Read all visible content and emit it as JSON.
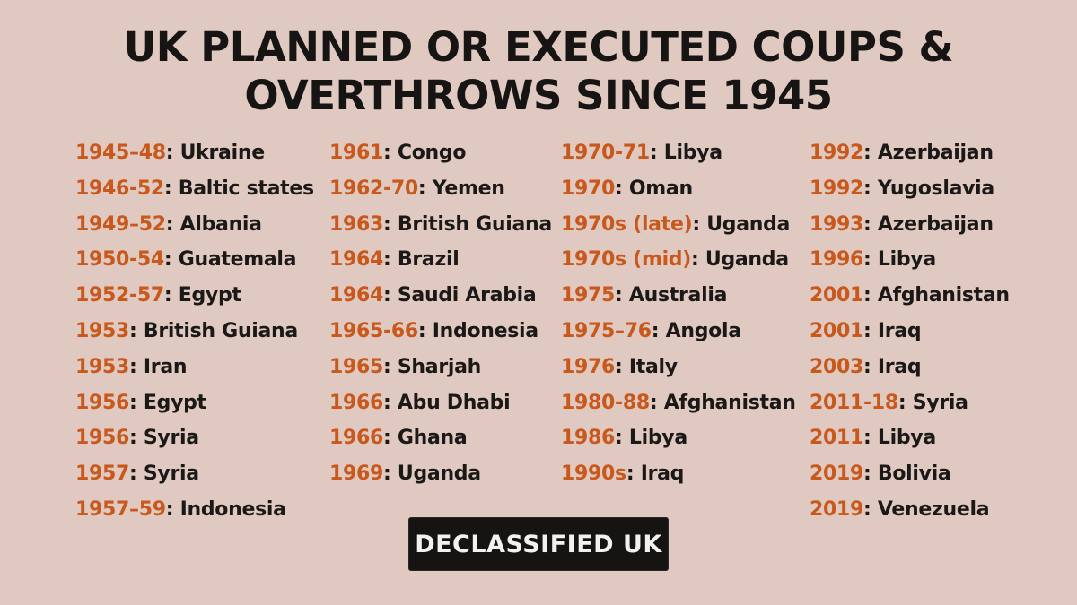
{
  "title": {
    "line1": "UK PLANNED OR EXECUTED COUPS &",
    "line2": "OVERTHROWS SINCE 1945"
  },
  "columns": [
    [
      {
        "year": "1945–48",
        "place": "Ukraine"
      },
      {
        "year": "1946-52",
        "place": "Baltic states"
      },
      {
        "year": "1949–52",
        "place": "Albania"
      },
      {
        "year": "1950-54",
        "place": "Guatemala"
      },
      {
        "year": "1952-57",
        "place": "Egypt"
      },
      {
        "year": "1953",
        "place": "British Guiana"
      },
      {
        "year": "1953",
        "place": "Iran"
      },
      {
        "year": "1956",
        "place": "Egypt"
      },
      {
        "year": "1956",
        "place": "Syria"
      },
      {
        "year": "1957",
        "place": "Syria"
      },
      {
        "year": "1957–59",
        "place": "Indonesia"
      }
    ],
    [
      {
        "year": "1961",
        "place": "Congo"
      },
      {
        "year": "1962-70",
        "place": "Yemen"
      },
      {
        "year": "1963",
        "place": "British Guiana"
      },
      {
        "year": "1964",
        "place": "Brazil"
      },
      {
        "year": "1964",
        "place": "Saudi Arabia"
      },
      {
        "year": "1965-66",
        "place": "Indonesia"
      },
      {
        "year": "1965",
        "place": "Sharjah"
      },
      {
        "year": "1966",
        "place": "Abu Dhabi"
      },
      {
        "year": "1966",
        "place": "Ghana"
      },
      {
        "year": "1969",
        "place": "Uganda"
      }
    ],
    [
      {
        "year": "1970-71",
        "place": "Libya"
      },
      {
        "year": "1970",
        "place": "Oman"
      },
      {
        "year": "1970s (late)",
        "place": "Uganda"
      },
      {
        "year": "1970s (mid)",
        "place": "Uganda"
      },
      {
        "year": "1975",
        "place": "Australia"
      },
      {
        "year": "1975–76",
        "place": "Angola"
      },
      {
        "year": "1976",
        "place": "Italy"
      },
      {
        "year": "1980-88",
        "place": "Afghanistan"
      },
      {
        "year": "1986",
        "place": "Libya"
      },
      {
        "year": "1990s",
        "place": "Iraq"
      }
    ],
    [
      {
        "year": "1992",
        "place": "Azerbaijan"
      },
      {
        "year": "1992",
        "place": "Yugoslavia"
      },
      {
        "year": "1993",
        "place": "Azerbaijan"
      },
      {
        "year": "1996",
        "place": "Libya"
      },
      {
        "year": "2001",
        "place": "Afghanistan"
      },
      {
        "year": "2001",
        "place": "Iraq"
      },
      {
        "year": "2003",
        "place": "Iraq"
      },
      {
        "year": "2011-18",
        "place": "Syria"
      },
      {
        "year": "2011",
        "place": "Libya"
      },
      {
        "year": "2019",
        "place": "Bolivia"
      },
      {
        "year": "2019",
        "place": "Venezuela"
      }
    ]
  ],
  "separator": ": ",
  "logo": {
    "text": "DECLASSIFIED UK"
  },
  "colors": {
    "background": "#e0c9c0",
    "year_accent": "#c8581b",
    "text": "#1b1918",
    "logo_bg": "#151413"
  }
}
